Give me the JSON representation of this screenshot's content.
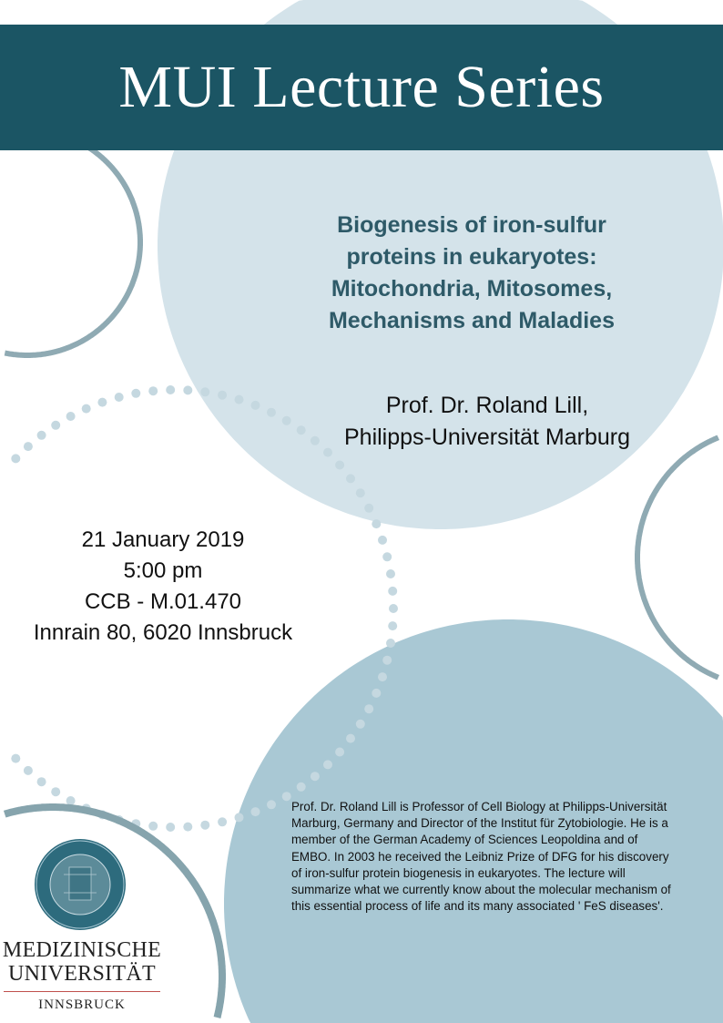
{
  "header": {
    "title": "MUI Lecture Series"
  },
  "talk": {
    "title_lines": [
      "Biogenesis of iron-sulfur",
      "proteins in eukaryotes:",
      "Mitochondria, Mitosomes,",
      "Mechanisms and Maladies"
    ]
  },
  "speaker": {
    "lines": [
      "Prof. Dr. Roland Lill,",
      "Philipps-Universität Marburg"
    ]
  },
  "event": {
    "date": "21 January 2019",
    "time": "5:00 pm",
    "room": "CCB - M.01.470",
    "address": "Innrain 80, 6020 Innsbruck"
  },
  "bio": {
    "text": "Prof. Dr. Roland Lill is Professor of Cell Biology at Philipps-Universität Marburg, Germany and Director of the Institut für Zytobiologie. He is a member of the German Academy of Sciences Leopoldina and of EMBO. In 2003 he received the Leibniz Prize of DFG for his discovery of iron-sulfur protein biogenesis in eukaryotes. The lecture will summarize what we currently know about the molecular mechanism of this essential process of life and its many associated ' FeS diseases'."
  },
  "logo": {
    "line1": "MEDIZINISCHE",
    "line2": "UNIVERSITÄT",
    "line3": "INNSBRUCK",
    "seal_text": "MEDIZINISCHE UNIVERSITÄT INNSBRUCK"
  },
  "colors": {
    "band": "#1b5564",
    "light_circle": "#d4e3ea",
    "mid_circle": "#a9c8d4",
    "ring": "#8faab3",
    "title_text": "#2e5a68",
    "logo_rule": "#c0504d"
  }
}
